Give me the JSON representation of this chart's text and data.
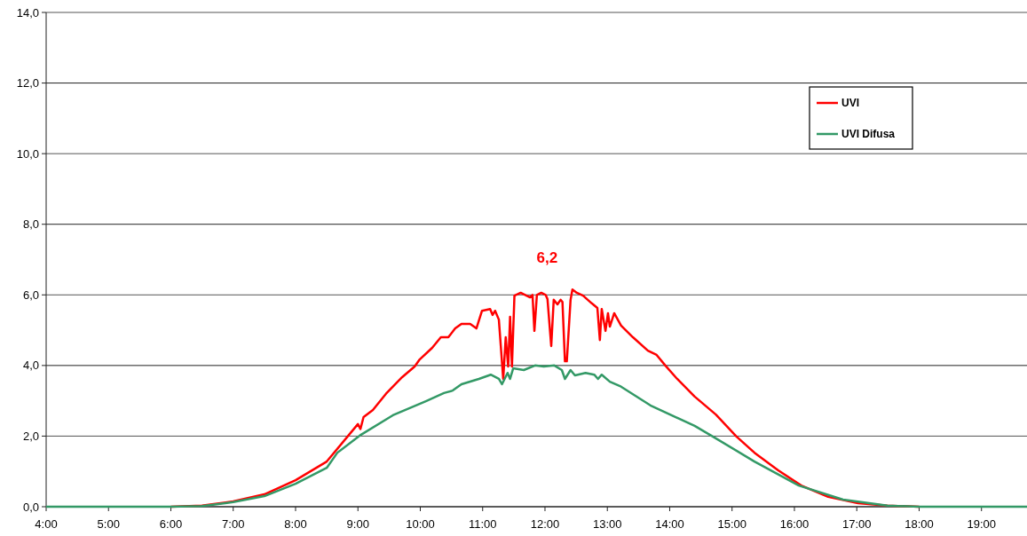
{
  "chart_data": {
    "type": "line",
    "xlim": [
      4,
      19.73
    ],
    "ylim": [
      0,
      14
    ],
    "xticks": [
      {
        "value": 4,
        "label": "4:00"
      },
      {
        "value": 5,
        "label": "5:00"
      },
      {
        "value": 6,
        "label": "6:00"
      },
      {
        "value": 7,
        "label": "7:00"
      },
      {
        "value": 8,
        "label": "8:00"
      },
      {
        "value": 9,
        "label": "9:00"
      },
      {
        "value": 10,
        "label": "10:00"
      },
      {
        "value": 11,
        "label": "11:00"
      },
      {
        "value": 12,
        "label": "12:00"
      },
      {
        "value": 13,
        "label": "13:00"
      },
      {
        "value": 14,
        "label": "14:00"
      },
      {
        "value": 15,
        "label": "15:00"
      },
      {
        "value": 16,
        "label": "16:00"
      },
      {
        "value": 17,
        "label": "17:00"
      },
      {
        "value": 18,
        "label": "18:00"
      },
      {
        "value": 19,
        "label": "19:00"
      }
    ],
    "yticks": [
      {
        "value": 0,
        "label": "0,0"
      },
      {
        "value": 2,
        "label": "2,0"
      },
      {
        "value": 4,
        "label": "4,0"
      },
      {
        "value": 6,
        "label": "6,0"
      },
      {
        "value": 8,
        "label": "8,0"
      },
      {
        "value": 10,
        "label": "10,0"
      },
      {
        "value": 12,
        "label": "12,0"
      },
      {
        "value": 14,
        "label": "14,0"
      }
    ],
    "grid": "y",
    "legend": "top right",
    "marker": "none",
    "line_style": "solid",
    "annotations": [
      "6,2"
    ],
    "series": [
      {
        "name": "UVI",
        "color": "#ff0000",
        "x": [
          6,
          6.5,
          7,
          7.5,
          8,
          8.5,
          9.0,
          9.04,
          9.09,
          9.24,
          9.45,
          9.71,
          9.91,
          9.99,
          10.19,
          10.33,
          10.45,
          10.56,
          10.66,
          10.8,
          10.9,
          10.99,
          11.12,
          11.16,
          11.2,
          11.26,
          11.33,
          11.37,
          11.41,
          11.44,
          11.47,
          11.51,
          11.61,
          11.76,
          11.8,
          11.83,
          11.87,
          11.94,
          12.01,
          12.04,
          12.1,
          12.14,
          12.2,
          12.25,
          12.28,
          12.32,
          12.35,
          12.41,
          12.44,
          12.51,
          12.61,
          12.75,
          12.84,
          12.88,
          12.91,
          12.97,
          13.01,
          13.04,
          13.11,
          13.22,
          13.41,
          13.65,
          13.79,
          13.93,
          14.12,
          14.4,
          14.74,
          15.07,
          15.36,
          15.74,
          16.11,
          16.54,
          17.02,
          17.49,
          18
        ],
        "values": [
          0,
          0.03,
          0.15,
          0.35,
          0.75,
          1.28,
          2.34,
          2.2,
          2.54,
          2.74,
          3.2,
          3.67,
          3.97,
          4.17,
          4.5,
          4.8,
          4.8,
          5.05,
          5.18,
          5.18,
          5.05,
          5.55,
          5.6,
          5.43,
          5.55,
          5.3,
          3.62,
          4.8,
          3.97,
          5.38,
          3.97,
          5.98,
          6.06,
          5.93,
          6.0,
          4.98,
          6.0,
          6.06,
          6.0,
          5.88,
          4.55,
          5.86,
          5.73,
          5.86,
          5.8,
          4.12,
          4.12,
          5.86,
          6.15,
          6.06,
          5.98,
          5.76,
          5.63,
          4.72,
          5.6,
          4.98,
          5.48,
          5.1,
          5.48,
          5.13,
          4.8,
          4.42,
          4.3,
          4.0,
          3.62,
          3.12,
          2.61,
          1.99,
          1.53,
          1.03,
          0.6,
          0.28,
          0.1,
          0.03,
          0
        ]
      },
      {
        "name": "UVI Difusa",
        "color": "#339966",
        "x": [
          4,
          5,
          6,
          6.5,
          7,
          7.5,
          8,
          8.5,
          8.67,
          9.05,
          9.56,
          10.09,
          10.38,
          10.52,
          10.66,
          10.94,
          11.13,
          11.26,
          11.31,
          11.4,
          11.44,
          11.49,
          11.66,
          11.84,
          11.98,
          12.15,
          12.27,
          12.32,
          12.41,
          12.48,
          12.65,
          12.79,
          12.85,
          12.91,
          13.04,
          13.22,
          13.69,
          14.4,
          14.69,
          15.36,
          16.07,
          16.78,
          17.49,
          18,
          19,
          19.73
        ],
        "values": [
          0,
          0,
          0,
          0.02,
          0.13,
          0.3,
          0.65,
          1.1,
          1.53,
          2.04,
          2.59,
          2.99,
          3.22,
          3.29,
          3.47,
          3.62,
          3.74,
          3.62,
          3.47,
          3.79,
          3.62,
          3.92,
          3.87,
          4.0,
          3.97,
          4.0,
          3.87,
          3.62,
          3.87,
          3.72,
          3.79,
          3.74,
          3.62,
          3.74,
          3.54,
          3.4,
          2.87,
          2.29,
          1.99,
          1.28,
          0.6,
          0.2,
          0.03,
          0,
          0,
          0
        ]
      }
    ]
  }
}
